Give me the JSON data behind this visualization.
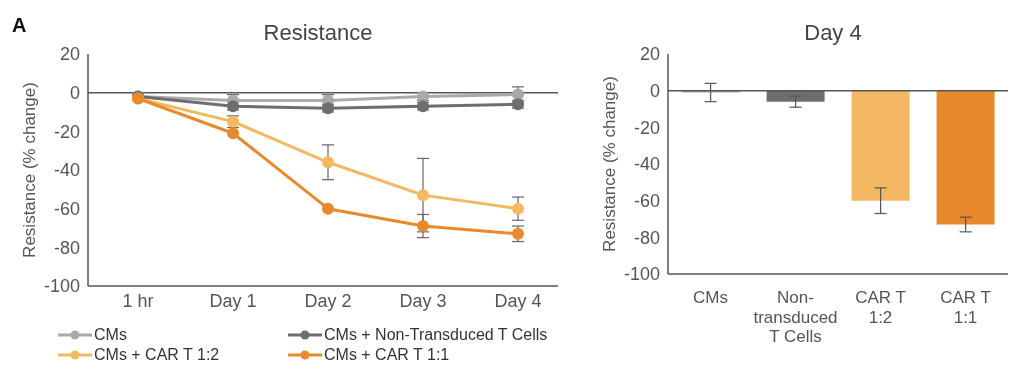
{
  "chart_data": [
    {
      "type": "line",
      "title": "Resistance",
      "ylabel": "Resistance (% change)",
      "categories": [
        "1 hr",
        "Day 1",
        "Day 2",
        "Day 3",
        "Day 4"
      ],
      "series": [
        {
          "name": "CMs",
          "color": "#aaaaaa",
          "values": [
            -2,
            -4,
            -4,
            -2,
            -1
          ],
          "errors": [
            null,
            3,
            3,
            2,
            4
          ]
        },
        {
          "name": "CMs + Non-Transduced T Cells",
          "color": "#6e6e6e",
          "values": [
            -2,
            -7,
            -8,
            -7,
            -6
          ],
          "errors": [
            null,
            2,
            2,
            2,
            2
          ]
        },
        {
          "name": "CMs + CAR T 1:2",
          "color": "#f4b862",
          "values": [
            -3,
            -15,
            -36,
            -53,
            -60
          ],
          "errors": [
            null,
            3,
            9,
            19,
            6
          ]
        },
        {
          "name": "CMs + CAR T 1:1",
          "color": "#e8892d",
          "values": [
            -3,
            -21,
            -60,
            -69,
            -73
          ],
          "errors": [
            null,
            null,
            null,
            6,
            4
          ]
        }
      ],
      "ylim": [
        -100,
        20
      ],
      "yticks": [
        -100,
        -80,
        -60,
        -40,
        -20,
        0,
        20
      ],
      "ref_lines": [
        {
          "axis": "y",
          "value": 0,
          "color": "#555555"
        }
      ],
      "marker": "circle",
      "legend": "bottom",
      "annotations": [
        "A"
      ]
    },
    {
      "type": "bar",
      "title": "Day 4",
      "ylabel": "Resistance (% change)",
      "categories": [
        "CMs",
        "Non-transduced T Cells",
        "CAR T 1:2",
        "CAR T 1:1"
      ],
      "values": [
        -1,
        -6,
        -60,
        -73
      ],
      "errors": [
        5,
        3,
        7,
        4
      ],
      "colors": [
        "#aaaaaa",
        "#6e6e6e",
        "#f4b862",
        "#e8892d"
      ],
      "ylim": [
        -100,
        20
      ],
      "yticks": [
        -100,
        -80,
        -60,
        -40,
        -20,
        0,
        20
      ],
      "ref_lines": [
        {
          "axis": "y",
          "value": 0,
          "color": "#555555"
        }
      ]
    }
  ]
}
